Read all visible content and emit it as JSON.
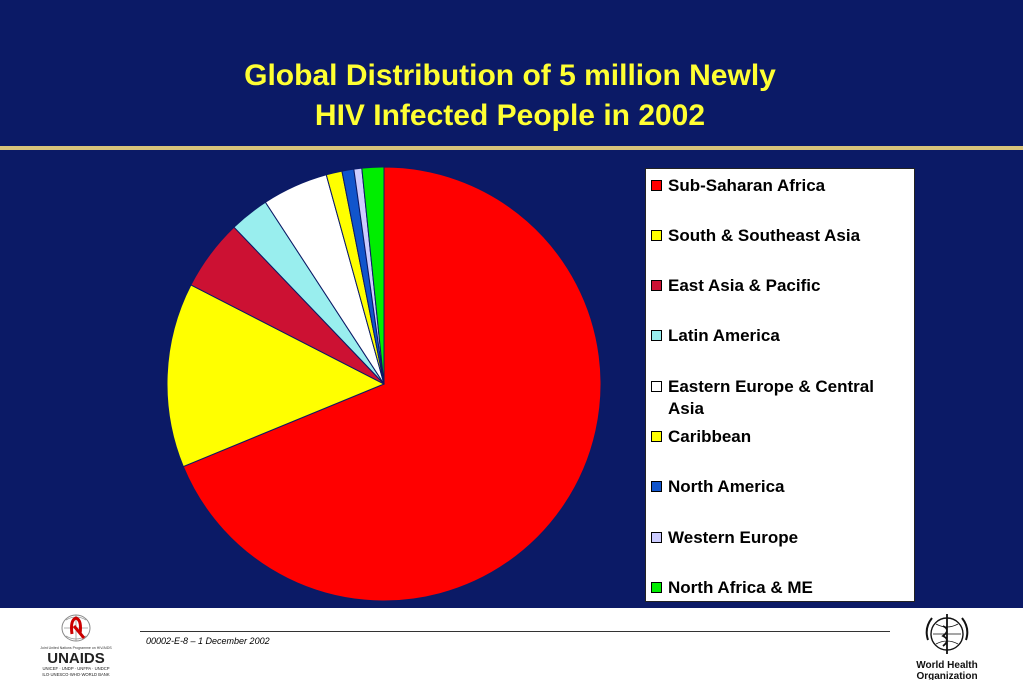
{
  "slide": {
    "title_line1": "Global Distribution of 5 million Newly",
    "title_line2": "HIV Infected People in 2002",
    "footer_code": "00002-E-8 – 1 December 2002"
  },
  "logos": {
    "unaids": {
      "name": "UNAIDS",
      "tagline": "Joint United Nations Programme on HIV/AIDS",
      "sponsors_line1": "UNICEF · UNDP · UNFPA · UNDCP",
      "sponsors_line2": "ILO·UNESCO·WHO·WORLD BANK"
    },
    "who": {
      "line1": "World Health",
      "line2": "Organization"
    }
  },
  "colors": {
    "background": "#0b1a66",
    "title": "#ffff33",
    "rule": "#d8c37a"
  },
  "chart_data": {
    "type": "pie",
    "title": "Global Distribution of 5 million Newly HIV Infected People in 2002",
    "legend_position": "right",
    "slices": [
      {
        "label": "Sub-Saharan Africa",
        "value": 3.5,
        "color": "#ff0000"
      },
      {
        "label": "South & Southeast Asia",
        "value": 0.7,
        "color": "#ffff00"
      },
      {
        "label": "East Asia & Pacific",
        "value": 0.27,
        "color": "#cc1133"
      },
      {
        "label": "Latin America",
        "value": 0.15,
        "color": "#99eeee"
      },
      {
        "label": "Eastern Europe & Central Asia",
        "value": 0.25,
        "color": "#ffffff"
      },
      {
        "label": "Caribbean",
        "value": 0.06,
        "color": "#ffff00"
      },
      {
        "label": "North America",
        "value": 0.045,
        "color": "#1155cc"
      },
      {
        "label": "Western Europe",
        "value": 0.03,
        "color": "#ccccff"
      },
      {
        "label": "North Africa & ME",
        "value": 0.083,
        "color": "#00ee00"
      }
    ]
  }
}
